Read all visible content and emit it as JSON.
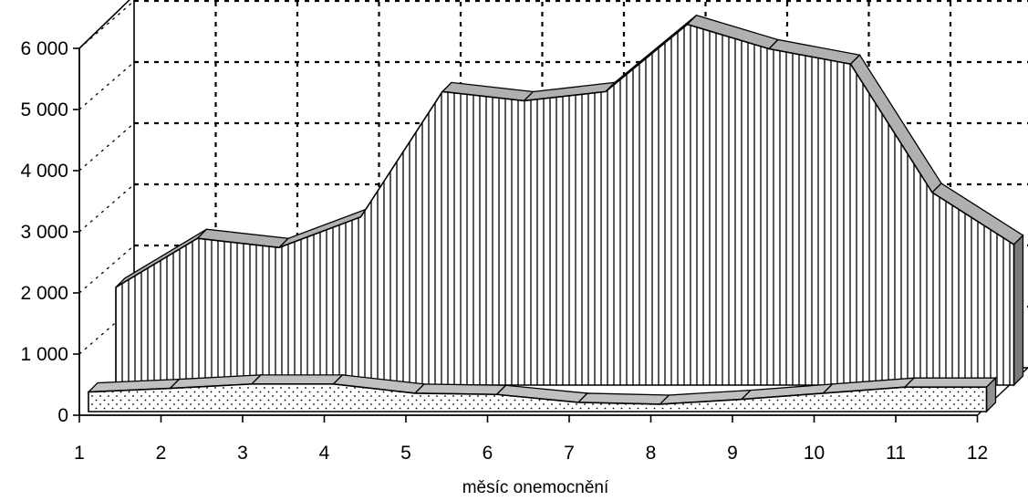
{
  "chart_data": {
    "type": "area",
    "style": "3d",
    "categories": [
      "1",
      "2",
      "3",
      "4",
      "5",
      "6",
      "7",
      "8",
      "9",
      "10",
      "11",
      "12"
    ],
    "series": [
      {
        "values": [
          1600,
          2400,
          2250,
          2750,
          4800,
          4650,
          4800,
          5900,
          5500,
          5250,
          3150,
          2300
        ],
        "fill": "vertical-hatch",
        "color": "#000000"
      },
      {
        "values": [
          320,
          380,
          450,
          450,
          300,
          280,
          150,
          120,
          200,
          300,
          400,
          400
        ],
        "fill": "dotted",
        "color": "#000000"
      }
    ],
    "y_ticks": [
      0,
      1000,
      2000,
      3000,
      4000,
      5000,
      6000
    ],
    "y_tick_labels": [
      "0",
      "1 000",
      "2 000",
      "3 000",
      "4 000",
      "5 000",
      "6 000"
    ],
    "xlabel": "měsíc onemocnění",
    "ylabel": "",
    "ylim": [
      0,
      6000
    ],
    "grid": true,
    "legend": "none"
  }
}
